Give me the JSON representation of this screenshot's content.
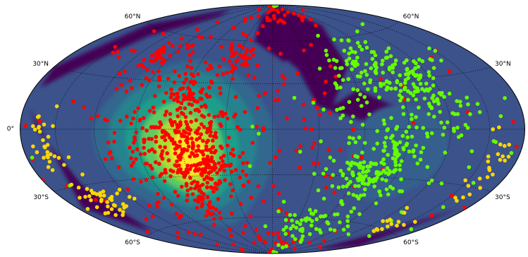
{
  "chart_data": {
    "type": "scatter",
    "projection": "hammer",
    "title": "",
    "graticule": {
      "latitudes": [
        -60,
        -30,
        0,
        30,
        60
      ],
      "longitude_step": 30,
      "style": "dotted",
      "color": "#000000"
    },
    "tick_labels": {
      "top": [
        "60°N",
        "60°N"
      ],
      "bottom": [
        "60°S",
        "60°S"
      ],
      "left": [
        "30°N",
        "0°",
        "30°S"
      ],
      "right": [
        "30°N",
        "30°S"
      ]
    },
    "background": {
      "type": "density-contour",
      "colormap": [
        "#440154",
        "#3b528b",
        "#21918c",
        "#5ec962",
        "#fde725"
      ],
      "peak": {
        "lon": -60,
        "lat": -10
      }
    },
    "series": [
      {
        "color": "#ff0000",
        "clusters": [
          {
            "lon": -60,
            "lat": -10,
            "spread_lon": 18,
            "spread_lat": 14,
            "count": 220
          },
          {
            "lon": -58,
            "lat": 25,
            "spread_lon": 8,
            "spread_lat": 6,
            "count": 45
          },
          {
            "lon": -45,
            "lat": -25,
            "spread_lon": 6,
            "spread_lat": 6,
            "count": 55
          },
          {
            "lon": -62,
            "lat": -45,
            "spread_lon": 6,
            "spread_lat": 10,
            "count": 40
          },
          {
            "lon": -100,
            "lat": 45,
            "spread_lon": 8,
            "spread_lat": 6,
            "count": 30
          },
          {
            "lon": -30,
            "lat": 45,
            "spread_lon": 8,
            "spread_lat": 6,
            "count": 25
          },
          {
            "lon": -50,
            "lat": 0,
            "spread_lon": 60,
            "spread_lat": 40,
            "count": 320
          },
          {
            "lon": 0,
            "lat": 80,
            "spread_lon": 60,
            "spread_lat": 5,
            "count": 30
          },
          {
            "lon": 0,
            "lat": -80,
            "spread_lon": 60,
            "spread_lat": 5,
            "count": 25
          }
        ]
      },
      {
        "color": "#66ff00",
        "clusters": [
          {
            "lon": 100,
            "lat": 25,
            "spread_lon": 10,
            "spread_lat": 8,
            "count": 60
          },
          {
            "lon": 70,
            "lat": -30,
            "spread_lon": 15,
            "spread_lat": 8,
            "count": 100
          },
          {
            "lon": 80,
            "lat": -12,
            "spread_lon": 10,
            "spread_lat": 8,
            "count": 40
          },
          {
            "lon": 80,
            "lat": 45,
            "spread_lon": 15,
            "spread_lat": 8,
            "count": 40
          },
          {
            "lon": 120,
            "lat": 10,
            "spread_lon": 20,
            "spread_lat": 20,
            "count": 60
          },
          {
            "lon": 55,
            "lat": 30,
            "spread_lon": 10,
            "spread_lat": 10,
            "count": 30
          },
          {
            "lon": 50,
            "lat": -65,
            "spread_lon": 25,
            "spread_lat": 8,
            "count": 60
          },
          {
            "lon": 90,
            "lat": 0,
            "spread_lon": 40,
            "spread_lat": 40,
            "count": 120
          }
        ]
      },
      {
        "color": "#ffd700",
        "clusters": [
          {
            "lon": -162,
            "lat": -10,
            "spread_lon": 6,
            "spread_lat": 12,
            "count": 30
          },
          {
            "lon": -145,
            "lat": -40,
            "spread_lon": 12,
            "spread_lat": 6,
            "count": 40
          },
          {
            "lon": 160,
            "lat": -20,
            "spread_lon": 5,
            "spread_lat": 8,
            "count": 25
          },
          {
            "lon": 140,
            "lat": -55,
            "spread_lon": 12,
            "spread_lat": 5,
            "count": 15
          }
        ]
      }
    ]
  }
}
